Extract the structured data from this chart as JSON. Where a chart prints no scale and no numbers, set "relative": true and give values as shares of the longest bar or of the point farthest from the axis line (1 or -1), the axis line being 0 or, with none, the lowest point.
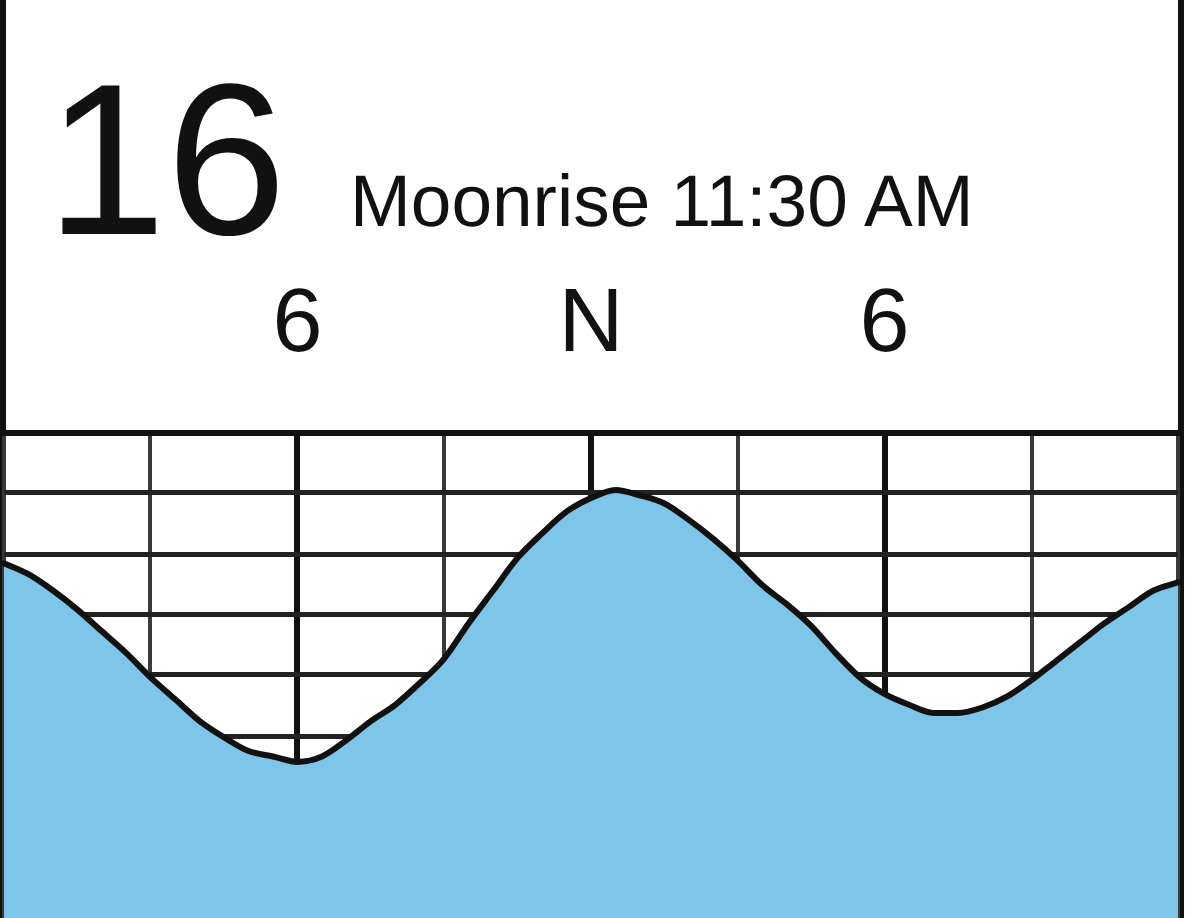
{
  "chart_data": {
    "type": "area",
    "title": "16",
    "subtitle": "Moonrise 11:30 AM",
    "relative": true,
    "categories": [
      null,
      null,
      null,
      null,
      null,
      null,
      null,
      null,
      null,
      null,
      null,
      null,
      "6",
      null,
      null,
      null,
      null,
      null,
      null,
      null,
      null,
      null,
      null,
      null,
      "N",
      null,
      null,
      null,
      null,
      null,
      null,
      null,
      null,
      null,
      null,
      null,
      "6",
      null,
      null,
      null,
      null,
      null,
      null,
      null,
      null,
      null,
      null,
      null,
      null
    ],
    "series": [
      {
        "color": "#7ec6e9",
        "values": [
          0.73,
          0.69,
          0.63,
          0.56,
          0.48,
          0.4,
          0.31,
          0.23,
          0.15,
          0.09,
          0.04,
          0.02,
          0,
          0.02,
          0.08,
          0.15,
          0.21,
          0.29,
          0.38,
          0.51,
          0.63,
          0.75,
          0.84,
          0.92,
          0.97,
          1,
          0.98,
          0.95,
          0.89,
          0.82,
          0.74,
          0.65,
          0.58,
          0.5,
          0.4,
          0.31,
          0.25,
          0.21,
          0.18,
          0.18,
          0.2,
          0.24,
          0.3,
          0.37,
          0.44,
          0.51,
          0.57,
          0.63,
          0.66
        ]
      }
    ],
    "grid": true
  }
}
